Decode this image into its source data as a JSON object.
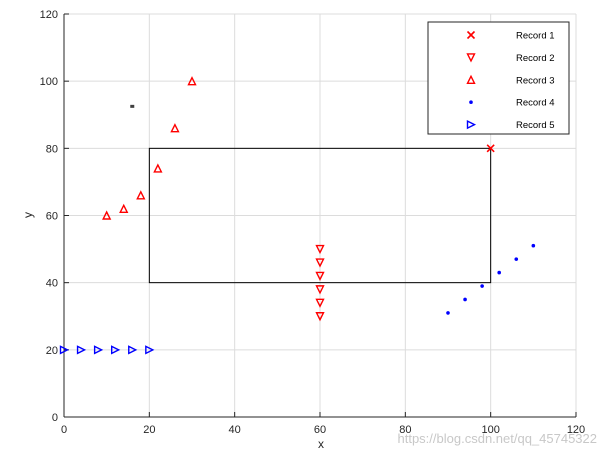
{
  "chart_data": {
    "type": "scatter",
    "xlabel": "x",
    "ylabel": "y",
    "xlim": [
      0,
      120
    ],
    "ylim": [
      0,
      120
    ],
    "xticks": [
      0,
      20,
      40,
      60,
      80,
      100,
      120
    ],
    "yticks": [
      0,
      20,
      40,
      60,
      80,
      100,
      120
    ],
    "grid": true,
    "legend_position": "top-right",
    "series": [
      {
        "name": "Record 1",
        "marker": "x",
        "color": "#ff0000",
        "x": [
          100
        ],
        "y": [
          80
        ]
      },
      {
        "name": "Record 2",
        "marker": "triangle-down",
        "color": "#ff0000",
        "x": [
          60,
          60,
          60,
          60,
          60,
          60
        ],
        "y": [
          50,
          46,
          42,
          38,
          34,
          30
        ]
      },
      {
        "name": "Record 3",
        "marker": "triangle-up",
        "color": "#ff0000",
        "x": [
          10,
          14,
          18,
          22,
          26,
          30
        ],
        "y": [
          60,
          62,
          66,
          74,
          86,
          100
        ]
      },
      {
        "name": "Record 4",
        "marker": "dot",
        "color": "#0000ff",
        "x": [
          90,
          94,
          98,
          102,
          106,
          110
        ],
        "y": [
          31,
          35,
          39,
          43,
          47,
          51
        ]
      },
      {
        "name": "Record 5",
        "marker": "triangle-right",
        "color": "#0000ff",
        "x": [
          0,
          4,
          8,
          12,
          16,
          20
        ],
        "y": [
          20,
          20,
          20,
          20,
          20,
          20
        ]
      }
    ],
    "extra_points": [
      {
        "x": 16,
        "y": 92.5,
        "color": "#404040",
        "marker": "square"
      }
    ],
    "rectangle": {
      "x0": 20,
      "y0": 40,
      "x1": 100,
      "y1": 80,
      "color": "#000000"
    }
  },
  "watermark": "https://blog.csdn.net/qq_45745322"
}
